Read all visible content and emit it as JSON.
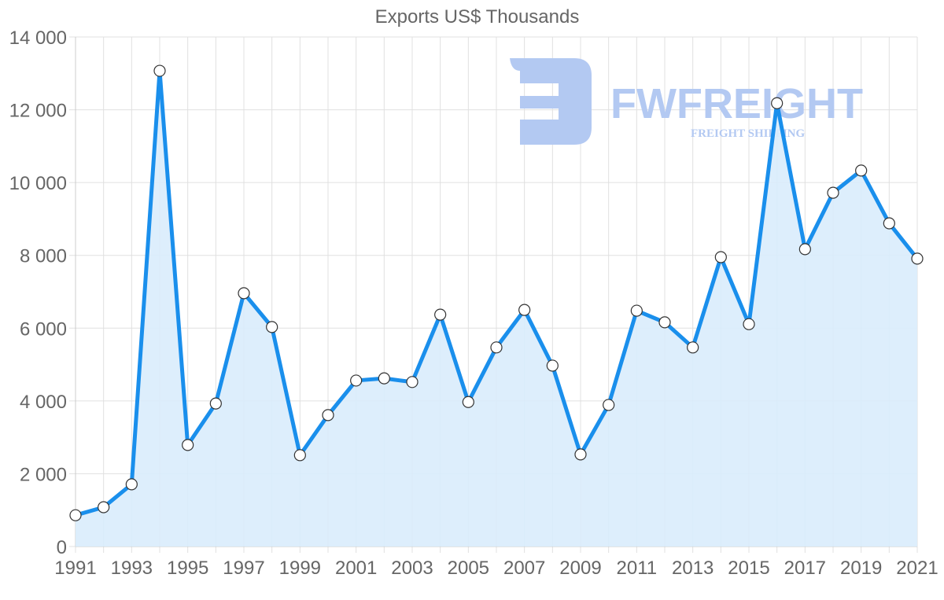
{
  "chart_data": {
    "type": "area",
    "title": "Exports US$ Thousands",
    "xlabel": "",
    "ylabel": "",
    "x": [
      1991,
      1992,
      1993,
      1994,
      1995,
      1996,
      1997,
      1998,
      1999,
      2000,
      2001,
      2002,
      2003,
      2004,
      2005,
      2006,
      2007,
      2008,
      2009,
      2010,
      2011,
      2012,
      2013,
      2014,
      2015,
      2016,
      2017,
      2018,
      2019,
      2020,
      2021
    ],
    "series": [
      {
        "name": "Exports US$ Thousands",
        "values": [
          860,
          1080,
          1710,
          13070,
          2790,
          3930,
          6960,
          6030,
          2510,
          3610,
          4560,
          4620,
          4520,
          6370,
          3970,
          5470,
          6500,
          4970,
          2530,
          3890,
          6480,
          6160,
          5470,
          7950,
          6110,
          12180,
          8170,
          9720,
          10330,
          8880,
          7910
        ]
      }
    ],
    "ylim": [
      0,
      14000
    ],
    "yticks": [
      "0",
      "2 000",
      "4 000",
      "6 000",
      "8 000",
      "10 000",
      "12 000",
      "14 000"
    ],
    "xticks": [
      "1991",
      "1993",
      "1995",
      "1997",
      "1999",
      "2001",
      "2003",
      "2005",
      "2007",
      "2009",
      "2011",
      "2013",
      "2015",
      "2017",
      "2019",
      "2021"
    ],
    "grid": true,
    "legend": "none",
    "colors": {
      "line": "#1a8fec",
      "fill": "#d9ecfc",
      "point_fill": "#ffffff",
      "point_stroke": "#333333",
      "grid": "#e0e0e0"
    }
  },
  "watermark": {
    "brand": "FWFREIGHT",
    "tagline": "FREIGHT SHIPPING"
  }
}
